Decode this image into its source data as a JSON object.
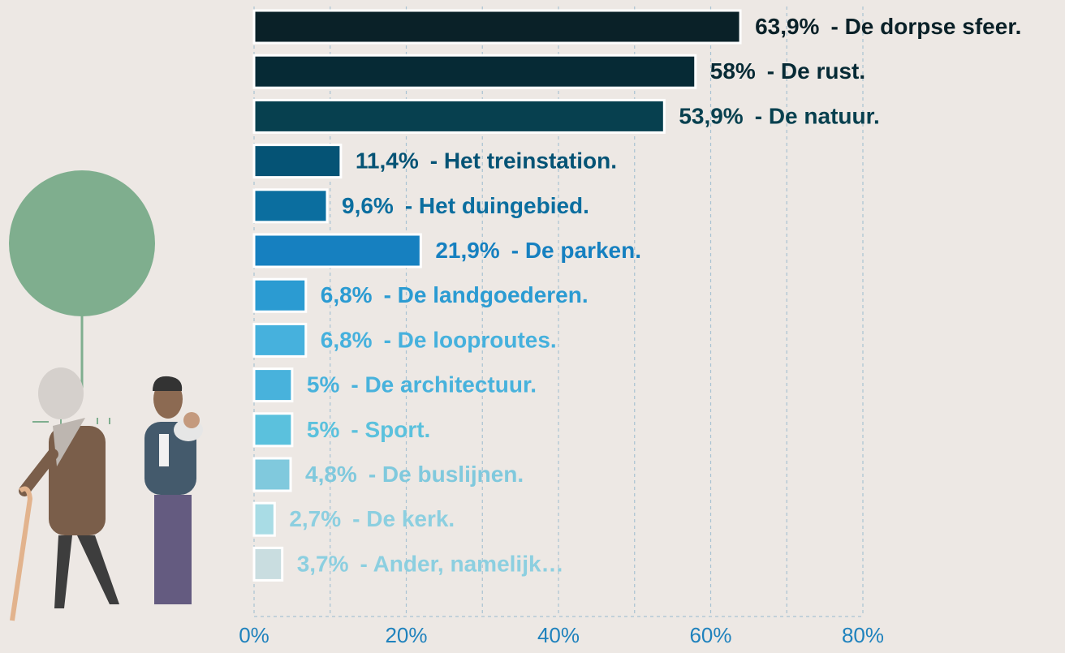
{
  "chart_data": {
    "type": "bar",
    "orientation": "horizontal",
    "categories": [
      "- De dorpse sfeer.",
      "- De rust.",
      "- De natuur.",
      "- Het treinstation.",
      "- Het duingebied.",
      "- De parken.",
      "- De landgoederen.",
      "- De looproutes.",
      "- De architectuur.",
      "- Sport.",
      "- De buslijnen.",
      "- De kerk.",
      "- Ander, namelijk…"
    ],
    "values": [
      63.9,
      58,
      53.9,
      11.4,
      9.6,
      21.9,
      6.8,
      6.8,
      5,
      5,
      4.8,
      2.7,
      3.7
    ],
    "value_labels": [
      "63,9%",
      "58%",
      "53,9%",
      "11,4%",
      "9,6%",
      "21,9%",
      "6,8%",
      "6,8%",
      "5%",
      "5%",
      "4,8%",
      "2,7%",
      "3,7%"
    ],
    "colors": [
      "#0a2128",
      "#062a35",
      "#07404f",
      "#055375",
      "#0b6e9f",
      "#1680c0",
      "#2b9bd2",
      "#46b1dd",
      "#48b2dc",
      "#5bc1dd",
      "#80c9dd",
      "#a9dce5",
      "#c9dde0"
    ],
    "label_colors": [
      "#0a2128",
      "#062a35",
      "#07404f",
      "#055375",
      "#0b6e9f",
      "#1680c0",
      "#2b9bd2",
      "#46b1dd",
      "#48b2dc",
      "#5bc1dd",
      "#80c9dd",
      "#8ccfe0",
      "#8ccfe0"
    ],
    "xlim": [
      0,
      80
    ],
    "xticks": [
      {
        "value": 0,
        "label": "0%"
      },
      {
        "value": 20,
        "label": "20%"
      },
      {
        "value": 40,
        "label": "40%"
      },
      {
        "value": 60,
        "label": "60%"
      },
      {
        "value": 80,
        "label": "80%"
      }
    ],
    "minor_xticks": [
      10,
      30,
      50,
      70
    ],
    "grid": true
  }
}
